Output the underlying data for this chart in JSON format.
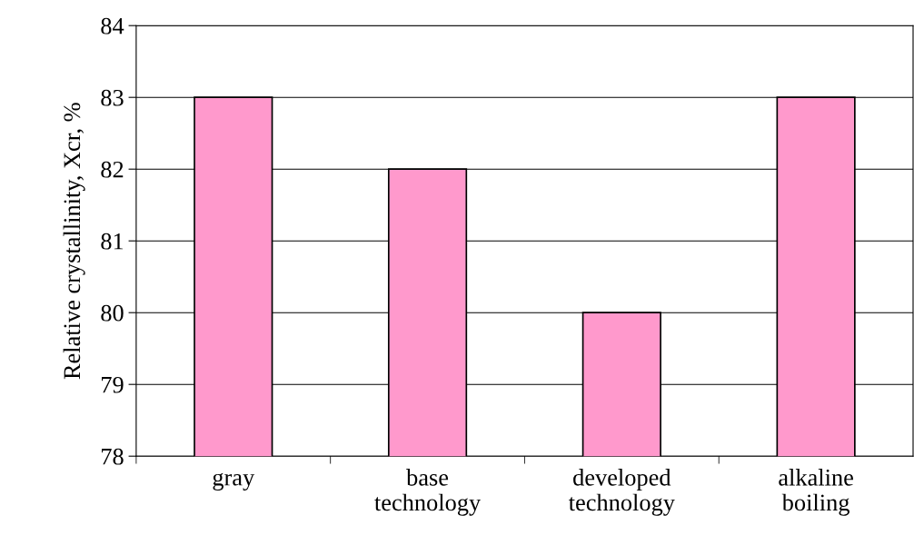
{
  "chart_data": {
    "type": "bar",
    "ylabel": "Relative crystallinity, Xcr, %",
    "categories": [
      "gray",
      "base technology",
      "developed technology",
      "alkaline boiling"
    ],
    "values": [
      83,
      82,
      80,
      83
    ],
    "color": "#ff99cc",
    "ylim": [
      78,
      84
    ],
    "yticks": [
      78,
      79,
      80,
      81,
      82,
      83,
      84
    ],
    "grid": "y"
  }
}
